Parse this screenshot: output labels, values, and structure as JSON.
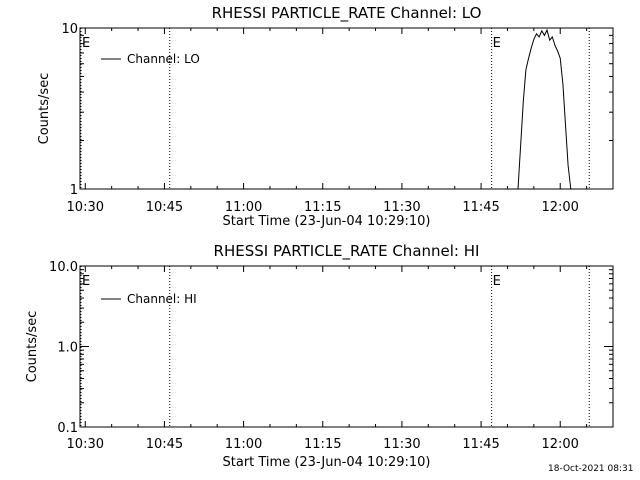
{
  "chart_data": [
    {
      "type": "line",
      "title": "RHESSI PARTICLE_RATE Channel: LO",
      "xlabel": "Start Time (23-Jun-04 10:29:10)",
      "ylabel": "Counts/sec",
      "yscale": "log",
      "ylim": [
        1,
        10
      ],
      "yticks": [
        1,
        10
      ],
      "ytick_labels": [
        "1",
        "10"
      ],
      "xlim": [
        "10:29",
        "12:10"
      ],
      "xticks": [
        "10:30",
        "10:45",
        "11:00",
        "11:15",
        "11:30",
        "11:45",
        "12:00"
      ],
      "grid": false,
      "legend": "top-left",
      "series": [
        {
          "name": "Channel: LO",
          "x": [
            "11:52:00",
            "11:53:00",
            "11:53:30",
            "11:54:00",
            "11:54:30",
            "11:55:00",
            "11:55:30",
            "11:56:00",
            "11:56:30",
            "11:57:00",
            "11:57:30",
            "11:58:00",
            "11:58:30",
            "11:59:00",
            "11:59:30",
            "12:00:00",
            "12:00:30",
            "12:01:00",
            "12:01:30",
            "12:02:00"
          ],
          "y": [
            1.0,
            3.5,
            5.5,
            6.5,
            7.5,
            8.5,
            9.2,
            8.8,
            9.6,
            9.0,
            9.7,
            8.4,
            8.8,
            7.8,
            7.2,
            6.5,
            4.5,
            2.5,
            1.4,
            1.0
          ]
        }
      ],
      "event_markers": [
        {
          "label": "E",
          "time": "10:29:10"
        },
        {
          "label": "",
          "time": "10:46:00"
        },
        {
          "label": "E",
          "time": "11:47:00"
        },
        {
          "label": "",
          "time": "12:05:30"
        }
      ]
    },
    {
      "type": "line",
      "title": "RHESSI PARTICLE_RATE Channel: HI",
      "xlabel": "Start Time (23-Jun-04 10:29:10)",
      "ylabel": "Counts/sec",
      "yscale": "log",
      "ylim": [
        0.1,
        10
      ],
      "yticks": [
        0.1,
        1,
        10
      ],
      "ytick_labels": [
        "0.1",
        "1.0",
        "10.0"
      ],
      "xlim": [
        "10:29",
        "12:10"
      ],
      "xticks": [
        "10:30",
        "10:45",
        "11:00",
        "11:15",
        "11:30",
        "11:45",
        "12:00"
      ],
      "grid": false,
      "legend": "top-left",
      "series": [
        {
          "name": "Channel: HI",
          "x": [],
          "y": []
        }
      ],
      "event_markers": [
        {
          "label": "E",
          "time": "10:29:10"
        },
        {
          "label": "",
          "time": "10:46:00"
        },
        {
          "label": "E",
          "time": "11:47:00"
        },
        {
          "label": "",
          "time": "12:05:30"
        }
      ]
    }
  ],
  "footer": {
    "date": "18-Oct-2021 08:31"
  }
}
